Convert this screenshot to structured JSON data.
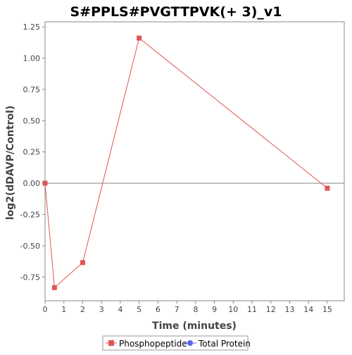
{
  "chart_data": {
    "type": "line",
    "title": "S#PPLS#PVGTTPVK(+ 3)_v1",
    "xlabel": "Time (minutes)",
    "ylabel": "log2(dDAVP/Control)",
    "xlim": [
      0,
      15.9
    ],
    "ylim": [
      -0.94,
      1.29
    ],
    "x_ticks": [
      "0",
      "1",
      "2",
      "3",
      "4",
      "5",
      "6",
      "7",
      "8",
      "9",
      "10",
      "11",
      "12",
      "13",
      "14",
      "15"
    ],
    "y_ticks": [
      "1.25",
      "1.00",
      "0.75",
      "0.50",
      "0.25",
      "0.00",
      "-0.25",
      "-0.50",
      "-0.75"
    ],
    "zero_line": true,
    "grid": false,
    "legend_position": "bottom",
    "series": [
      {
        "name": "Phosphopeptide",
        "color": "#e05555",
        "marker": "square",
        "x": [
          0,
          0.5,
          2,
          5,
          15
        ],
        "y": [
          0.0,
          -0.835,
          -0.635,
          1.16,
          -0.04
        ]
      },
      {
        "name": "Total Protein",
        "color": "#5566ee",
        "marker": "circle",
        "x": [],
        "y": []
      }
    ]
  }
}
